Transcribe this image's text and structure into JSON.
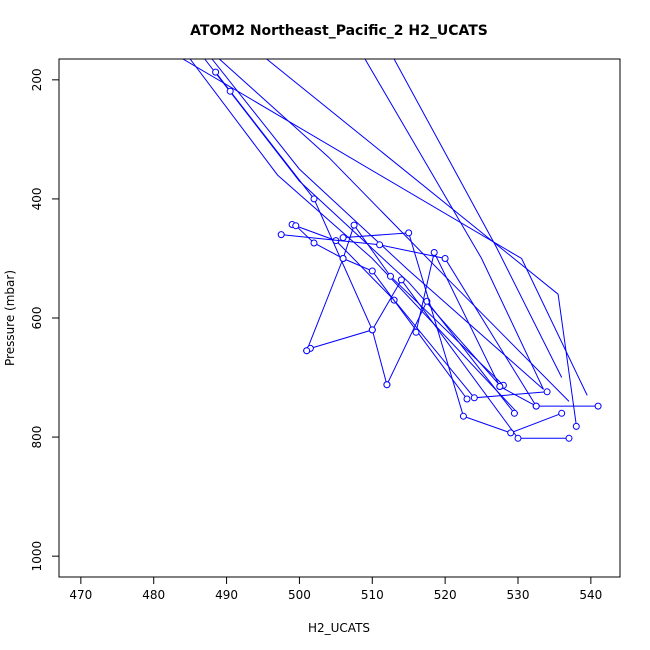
{
  "chart_data": {
    "type": "line",
    "title": "ATOM2 Northeast_Pacific_2 H2_UCATS",
    "xlabel": "H2_UCATS",
    "ylabel": "Pressure (mbar)",
    "xlim": [
      467,
      544
    ],
    "ylim": [
      1035,
      165
    ],
    "y_reversed": true,
    "grid": false,
    "line_color": "#0000ff",
    "x_ticks": [
      470,
      480,
      490,
      500,
      510,
      520,
      530,
      540
    ],
    "y_ticks": [
      200,
      400,
      600,
      800,
      1000
    ],
    "x_tick_labels": [
      "470",
      "480",
      "490",
      "500",
      "510",
      "520",
      "530",
      "540"
    ],
    "y_tick_labels": [
      "200",
      "400",
      "600",
      "800",
      "1000"
    ],
    "series": [
      {
        "mode": "lines",
        "x": [
          484.0,
          530.5,
          539.5
        ],
        "y": [
          165,
          500,
          730
        ]
      },
      {
        "mode": "lines",
        "x": [
          495.5,
          535.5,
          538.0
        ],
        "y": [
          165,
          560,
          780
        ]
      },
      {
        "mode": "lines",
        "x": [
          488.0,
          500.0,
          515.0,
          533.5
        ],
        "y": [
          165,
          350,
          520,
          720
        ]
      },
      {
        "mode": "lines",
        "x": [
          489.0,
          504.0,
          520.0,
          537.0
        ],
        "y": [
          165,
          330,
          530,
          740
        ]
      },
      {
        "mode": "lines",
        "x": [
          509.0,
          525.0,
          533.5
        ],
        "y": [
          165,
          500,
          720
        ]
      },
      {
        "mode": "lines",
        "x": [
          513.0,
          527.0,
          536.0
        ],
        "y": [
          165,
          480,
          700
        ]
      },
      {
        "mode": "lines",
        "x": [
          485.0,
          497.0,
          510.0,
          530.0
        ],
        "y": [
          165,
          360,
          500,
          760
        ]
      },
      {
        "mode": "lines",
        "x": [
          487.0,
          500.0,
          515.0,
          527.5
        ],
        "y": [
          165,
          370,
          540,
          713
        ]
      },
      {
        "mode": "points+lines",
        "x": [
          488.5,
          490.5,
          502.0,
          510.0,
          512.0,
          517.5,
          529.5
        ],
        "y": [
          187,
          219,
          400,
          620,
          712,
          572,
          760
        ]
      },
      {
        "mode": "points+lines",
        "x": [
          499.0,
          505.0,
          513.0,
          524.0,
          534.0
        ],
        "y": [
          443,
          470,
          570,
          734,
          724
        ]
      },
      {
        "mode": "points+lines",
        "x": [
          497.5,
          511.0,
          520.0,
          532.5,
          541.0
        ],
        "y": [
          460,
          477,
          500,
          748,
          748
        ]
      },
      {
        "mode": "points+lines",
        "x": [
          499.5,
          502.0,
          506.0,
          510.0,
          523.0
        ],
        "y": [
          445,
          474,
          500,
          521,
          736
        ]
      },
      {
        "mode": "points+lines",
        "x": [
          501.0,
          506.0,
          507.5,
          512.5,
          528.0
        ],
        "y": [
          655,
          500,
          444,
          530,
          713
        ]
      },
      {
        "mode": "points+lines",
        "x": [
          501.5,
          510.0,
          514.0,
          530.0,
          537.0
        ],
        "y": [
          651,
          620,
          536,
          802,
          802
        ]
      },
      {
        "mode": "points+lines",
        "x": [
          506.0,
          515.0,
          522.5,
          529.0,
          536.0
        ],
        "y": [
          465,
          457,
          765,
          793,
          760
        ]
      },
      {
        "mode": "points+lines",
        "x": [
          516.0,
          518.5,
          527.5,
          532.5
        ],
        "y": [
          624,
          490,
          715,
          748
        ]
      },
      {
        "mode": "points",
        "x": [
          538.0,
          527.5,
          512.0,
          501.0
        ],
        "y": [
          782,
          715,
          712,
          655
        ]
      }
    ]
  }
}
